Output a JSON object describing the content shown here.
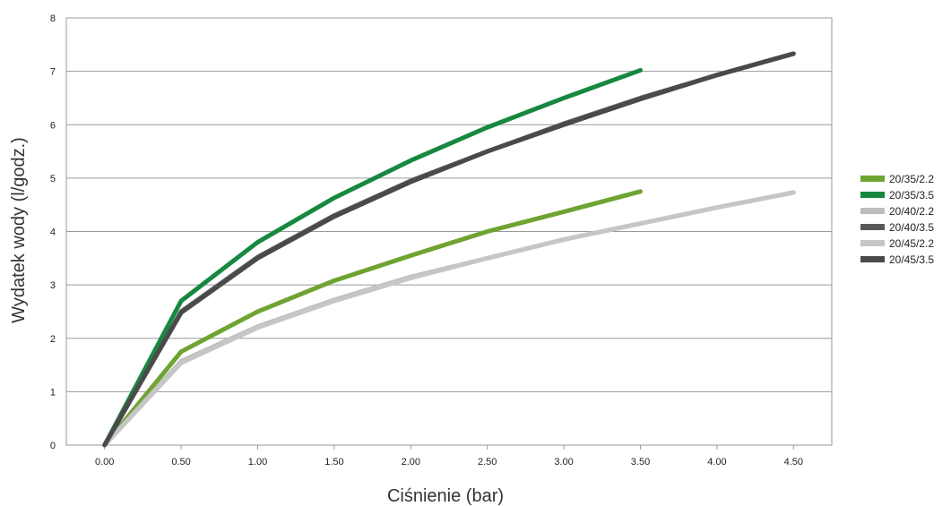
{
  "chart_data": {
    "type": "line",
    "title": "",
    "xlabel": "Ciśnienie (bar)",
    "ylabel": "Wydatek wody (l/godz.)",
    "x": [
      0.0,
      0.5,
      1.0,
      1.5,
      2.0,
      2.5,
      3.0,
      3.5,
      4.0,
      4.5
    ],
    "x_tick_labels": [
      "0.00",
      "0.50",
      "1.00",
      "1.50",
      "2.00",
      "2.50",
      "3.00",
      "3.50",
      "4.00",
      "4.50"
    ],
    "y_ticks": [
      0,
      1,
      2,
      3,
      4,
      5,
      6,
      7,
      8
    ],
    "y_tick_labels": [
      "0",
      "1",
      "2",
      "3",
      "4",
      "5",
      "6",
      "7",
      "8"
    ],
    "xlim": [
      -0.25,
      4.75
    ],
    "ylim": [
      0,
      8
    ],
    "grid": "horizontal",
    "legend_position": "right",
    "series": [
      {
        "name": "20/35/2.2",
        "color": "#6fa332",
        "values": [
          0,
          1.75,
          2.5,
          3.08,
          3.55,
          4.0,
          4.37,
          4.75,
          null,
          null
        ]
      },
      {
        "name": "20/35/3.5",
        "color": "#17883f",
        "values": [
          0,
          2.7,
          3.8,
          4.63,
          5.33,
          5.95,
          6.5,
          7.02,
          null,
          null
        ]
      },
      {
        "name": "20/40/2.2",
        "color": "#bdbdbd",
        "values": [
          0,
          1.57,
          2.22,
          2.72,
          3.15,
          3.5,
          3.85,
          4.15,
          4.45,
          4.73
        ]
      },
      {
        "name": "20/40/3.5",
        "color": "#585858",
        "values": [
          0,
          2.5,
          3.52,
          4.3,
          4.95,
          5.5,
          6.02,
          6.5,
          6.93,
          7.33
        ]
      },
      {
        "name": "20/45/2.2",
        "color": "#c6c6c6",
        "values": [
          0,
          1.54,
          2.2,
          2.7,
          3.13,
          3.5,
          3.85,
          4.15,
          4.45,
          4.73
        ]
      },
      {
        "name": "20/45/3.5",
        "color": "#4a4a4a",
        "values": [
          0,
          2.48,
          3.5,
          4.28,
          4.93,
          5.5,
          6.0,
          6.48,
          6.93,
          7.33
        ]
      }
    ]
  }
}
